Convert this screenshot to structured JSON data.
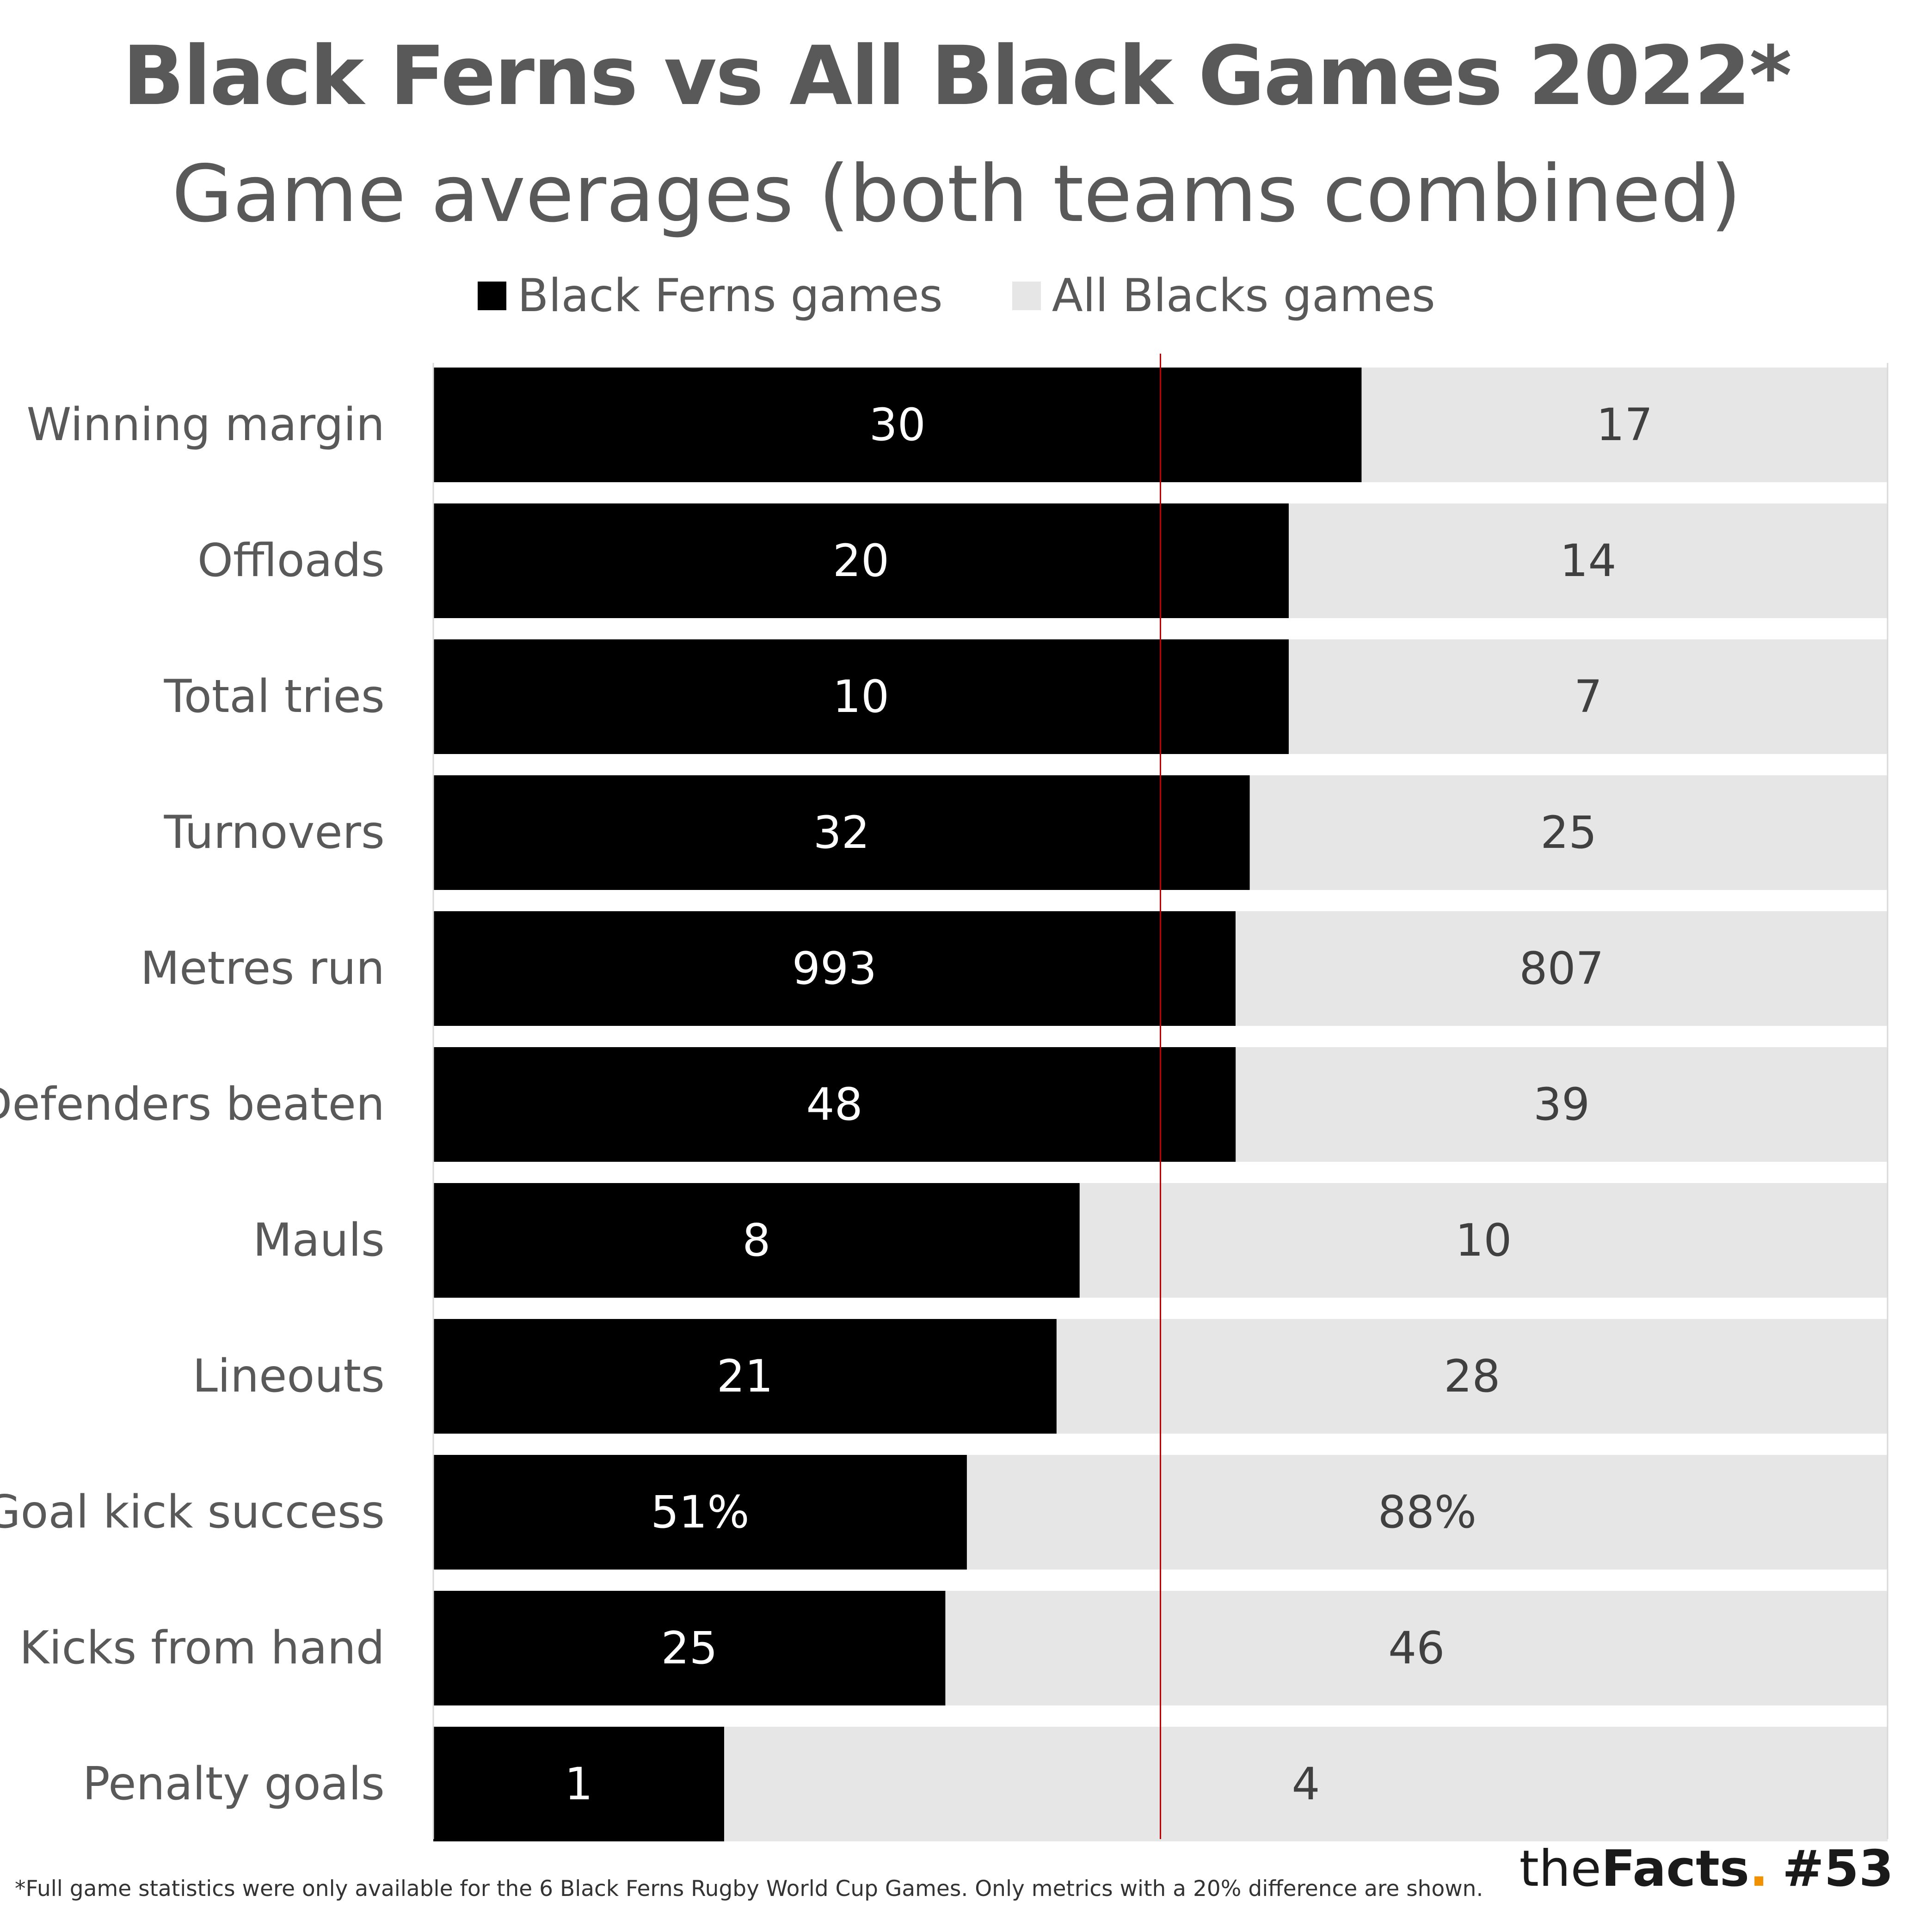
{
  "chart_data": {
    "type": "bar",
    "orientation": "horizontal",
    "stacked": "100%",
    "title": "Black Ferns vs All Black Games 2022*",
    "subtitle": "Game averages (both teams combined)",
    "legend_position": "top",
    "categories": [
      "Winning margin",
      "Offloads",
      "Total tries",
      "Turnovers",
      "Metres run",
      "Defenders beaten",
      "Mauls",
      "Lineouts",
      "Goal kick success",
      "Kicks from hand",
      "Penalty goals"
    ],
    "series": [
      {
        "name": "Black Ferns games",
        "color": "#000000",
        "values": [
          30,
          20,
          10,
          32,
          993,
          48,
          8,
          21,
          51,
          25,
          1
        ],
        "labels": [
          "30",
          "20",
          "10",
          "32",
          "993",
          "48",
          "8",
          "21",
          "51%",
          "25",
          "1"
        ]
      },
      {
        "name": "All Blacks games",
        "color": "#e6e6e6",
        "values": [
          17,
          14,
          7,
          25,
          807,
          39,
          10,
          28,
          88,
          46,
          4
        ],
        "labels": [
          "17",
          "14",
          "7",
          "25",
          "807",
          "39",
          "10",
          "28",
          "88%",
          "46",
          "4"
        ]
      }
    ],
    "reference_line": {
      "value_share": 0.5,
      "color": "#c00000"
    }
  },
  "footnote": "*Full game statistics were only available for the 6 Black Ferns Rugby World Cup Games. Only metrics with a 20% difference are shown.",
  "brand": {
    "the": "the",
    "facts": "Facts",
    "dot": ".",
    "number": "#53"
  }
}
